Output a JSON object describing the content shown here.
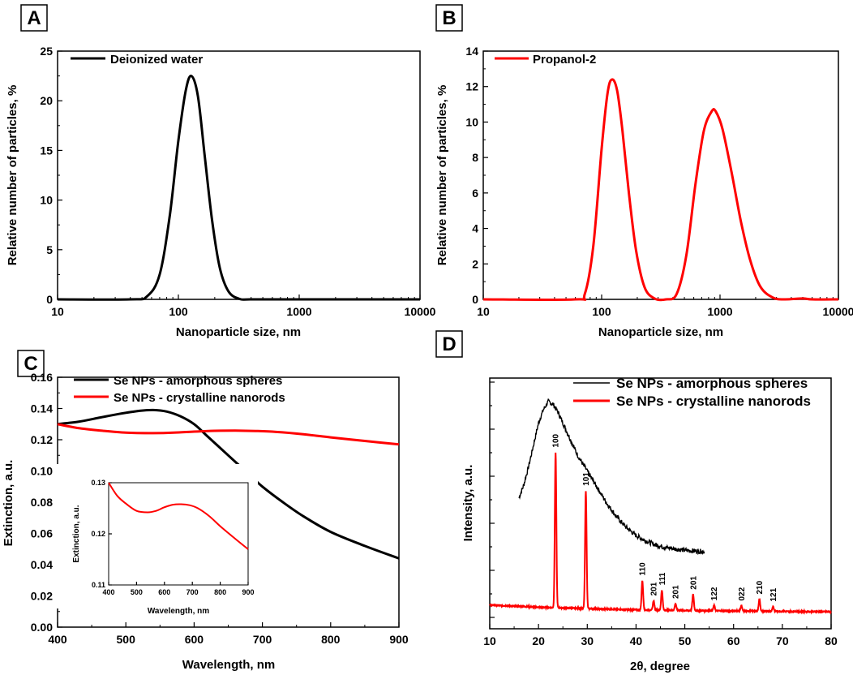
{
  "chart_data": [
    {
      "panel": "A",
      "type": "line",
      "xscale": "log",
      "xlabel": "Nanoparticle size, nm",
      "ylabel": "Relative number of particles, %",
      "xlim": [
        10,
        10000
      ],
      "ylim": [
        0,
        25
      ],
      "xticks": [
        "10",
        "100",
        "1000",
        "10000"
      ],
      "yticks": [
        "0",
        "5",
        "10",
        "15",
        "20",
        "25"
      ],
      "series": [
        {
          "name": "Deionized water",
          "color": "#000000",
          "x": [
            10,
            40,
            55,
            70,
            85,
            100,
            115,
            128,
            145,
            165,
            190,
            220,
            260,
            320,
            400,
            1000,
            10000
          ],
          "y": [
            0,
            0,
            0.3,
            2.5,
            8.5,
            16,
            21,
            22.5,
            20.5,
            14.5,
            8,
            3.2,
            0.8,
            0.05,
            0,
            0,
            0
          ]
        }
      ]
    },
    {
      "panel": "B",
      "type": "line",
      "xscale": "log",
      "xlabel": "Nanoparticle size, nm",
      "ylabel": "Relative number of particles, %",
      "xlim": [
        10,
        10000
      ],
      "ylim": [
        0,
        14
      ],
      "xticks": [
        "10",
        "100",
        "1000",
        "10000"
      ],
      "yticks": [
        "0",
        "2",
        "4",
        "6",
        "8",
        "10",
        "12",
        "14"
      ],
      "series": [
        {
          "name": "Propanol-2",
          "color": "#ff0000",
          "x": [
            10,
            60,
            72,
            85,
            100,
            112,
            122,
            135,
            150,
            170,
            195,
            230,
            280,
            350,
            430,
            520,
            620,
            730,
            850,
            920,
            1050,
            1250,
            1500,
            1800,
            2200,
            2800,
            3500,
            5000,
            6000,
            10000
          ],
          "y": [
            0,
            0,
            0.3,
            3,
            8.5,
            11.6,
            12.4,
            11.8,
            9.5,
            6,
            2.8,
            0.7,
            0.05,
            0,
            0.3,
            2.5,
            6.5,
            9.5,
            10.6,
            10.6,
            9.6,
            7.2,
            4.4,
            2.2,
            0.7,
            0.1,
            0,
            0.05,
            0,
            0
          ]
        }
      ]
    },
    {
      "panel": "C",
      "type": "line",
      "xlabel": "Wavelength, nm",
      "ylabel": "Extinction, a.u.",
      "xlim": [
        400,
        900
      ],
      "ylim": [
        0,
        0.16
      ],
      "xticks": [
        "400",
        "500",
        "600",
        "700",
        "800",
        "900"
      ],
      "yticks": [
        "0.00",
        "0.02",
        "0.04",
        "0.06",
        "0.08",
        "0.10",
        "0.12",
        "0.14",
        "0.16"
      ],
      "series": [
        {
          "name": "Se NPs - amorphous spheres",
          "color": "#000000",
          "x": [
            400,
            430,
            460,
            490,
            520,
            540,
            560,
            580,
            600,
            620,
            650,
            680,
            700,
            730,
            760,
            800,
            850,
            900
          ],
          "y": [
            0.13,
            0.1315,
            0.134,
            0.1365,
            0.1385,
            0.139,
            0.138,
            0.135,
            0.13,
            0.122,
            0.11,
            0.098,
            0.09,
            0.08,
            0.071,
            0.061,
            0.052,
            0.044
          ]
        },
        {
          "name": "Se NPs - crystalline nanorods",
          "color": "#ff0000",
          "x": [
            400,
            430,
            460,
            500,
            540,
            570,
            600,
            630,
            660,
            690,
            720,
            760,
            800,
            850,
            900
          ],
          "y": [
            0.13,
            0.1275,
            0.126,
            0.1245,
            0.1242,
            0.1245,
            0.1252,
            0.1257,
            0.1258,
            0.1256,
            0.125,
            0.1235,
            0.1215,
            0.1192,
            0.117
          ]
        }
      ],
      "inset": {
        "xlabel": "Wavelength, nm",
        "ylabel": "Extinction, a.u.",
        "xlim": [
          400,
          900
        ],
        "ylim": [
          0.11,
          0.13
        ],
        "xticks": [
          "400",
          "500",
          "600",
          "700",
          "800",
          "900"
        ],
        "yticks": [
          "0.11",
          "0.12",
          "0.13"
        ],
        "series": [
          {
            "name": "Se NPs - crystalline nanorods",
            "color": "#ff0000",
            "x": [
              400,
              430,
              460,
              500,
              540,
              570,
              600,
              630,
              660,
              690,
              720,
              760,
              800,
              850,
              900
            ],
            "y": [
              0.13,
              0.1275,
              0.126,
              0.1245,
              0.1242,
              0.1245,
              0.1252,
              0.1257,
              0.1258,
              0.1256,
              0.125,
              0.1235,
              0.1215,
              0.1192,
              0.117
            ]
          }
        ]
      }
    },
    {
      "panel": "D",
      "type": "line",
      "xlabel": "2θ, degree",
      "ylabel": "Intensity, a.u.",
      "xlim": [
        10,
        80
      ],
      "xticks": [
        "10",
        "20",
        "30",
        "40",
        "50",
        "60",
        "70",
        "80"
      ],
      "series": [
        {
          "name": "Se NPs - amorphous spheres",
          "color": "#000000",
          "x": [
            16,
            17,
            18,
            19,
            20,
            21,
            22,
            23,
            24,
            25,
            26,
            27,
            28,
            29,
            30,
            32,
            34,
            36,
            38,
            40,
            42,
            44,
            46,
            48,
            50,
            52,
            54
          ],
          "y": [
            0.44,
            0.49,
            0.56,
            0.64,
            0.72,
            0.77,
            0.8,
            0.79,
            0.76,
            0.72,
            0.68,
            0.64,
            0.6,
            0.57,
            0.54,
            0.48,
            0.42,
            0.37,
            0.33,
            0.3,
            0.28,
            0.265,
            0.255,
            0.25,
            0.245,
            0.242,
            0.24
          ]
        },
        {
          "name": "Se NPs - crystalline nanorods",
          "color": "#ff0000",
          "baseline": [
            [
              10,
              0.04
            ],
            [
              20,
              0.032
            ],
            [
              40,
              0.022
            ],
            [
              60,
              0.018
            ],
            [
              80,
              0.015
            ]
          ],
          "peaks": [
            {
              "label": "100",
              "x": 23.5,
              "y": 0.58
            },
            {
              "label": "101",
              "x": 29.7,
              "y": 0.44
            },
            {
              "label": "110",
              "x": 41.3,
              "y": 0.11
            },
            {
              "label": "201",
              "x": 43.6,
              "y": 0.035
            },
            {
              "label": "111",
              "x": 45.3,
              "y": 0.075
            },
            {
              "label": "201",
              "x": 48.1,
              "y": 0.025
            },
            {
              "label": "201",
              "x": 51.7,
              "y": 0.06
            },
            {
              "label": "122",
              "x": 56.0,
              "y": 0.02
            },
            {
              "label": "022",
              "x": 61.6,
              "y": 0.02
            },
            {
              "label": "210",
              "x": 65.3,
              "y": 0.045
            },
            {
              "label": "121",
              "x": 68.1,
              "y": 0.018
            }
          ]
        }
      ]
    }
  ]
}
